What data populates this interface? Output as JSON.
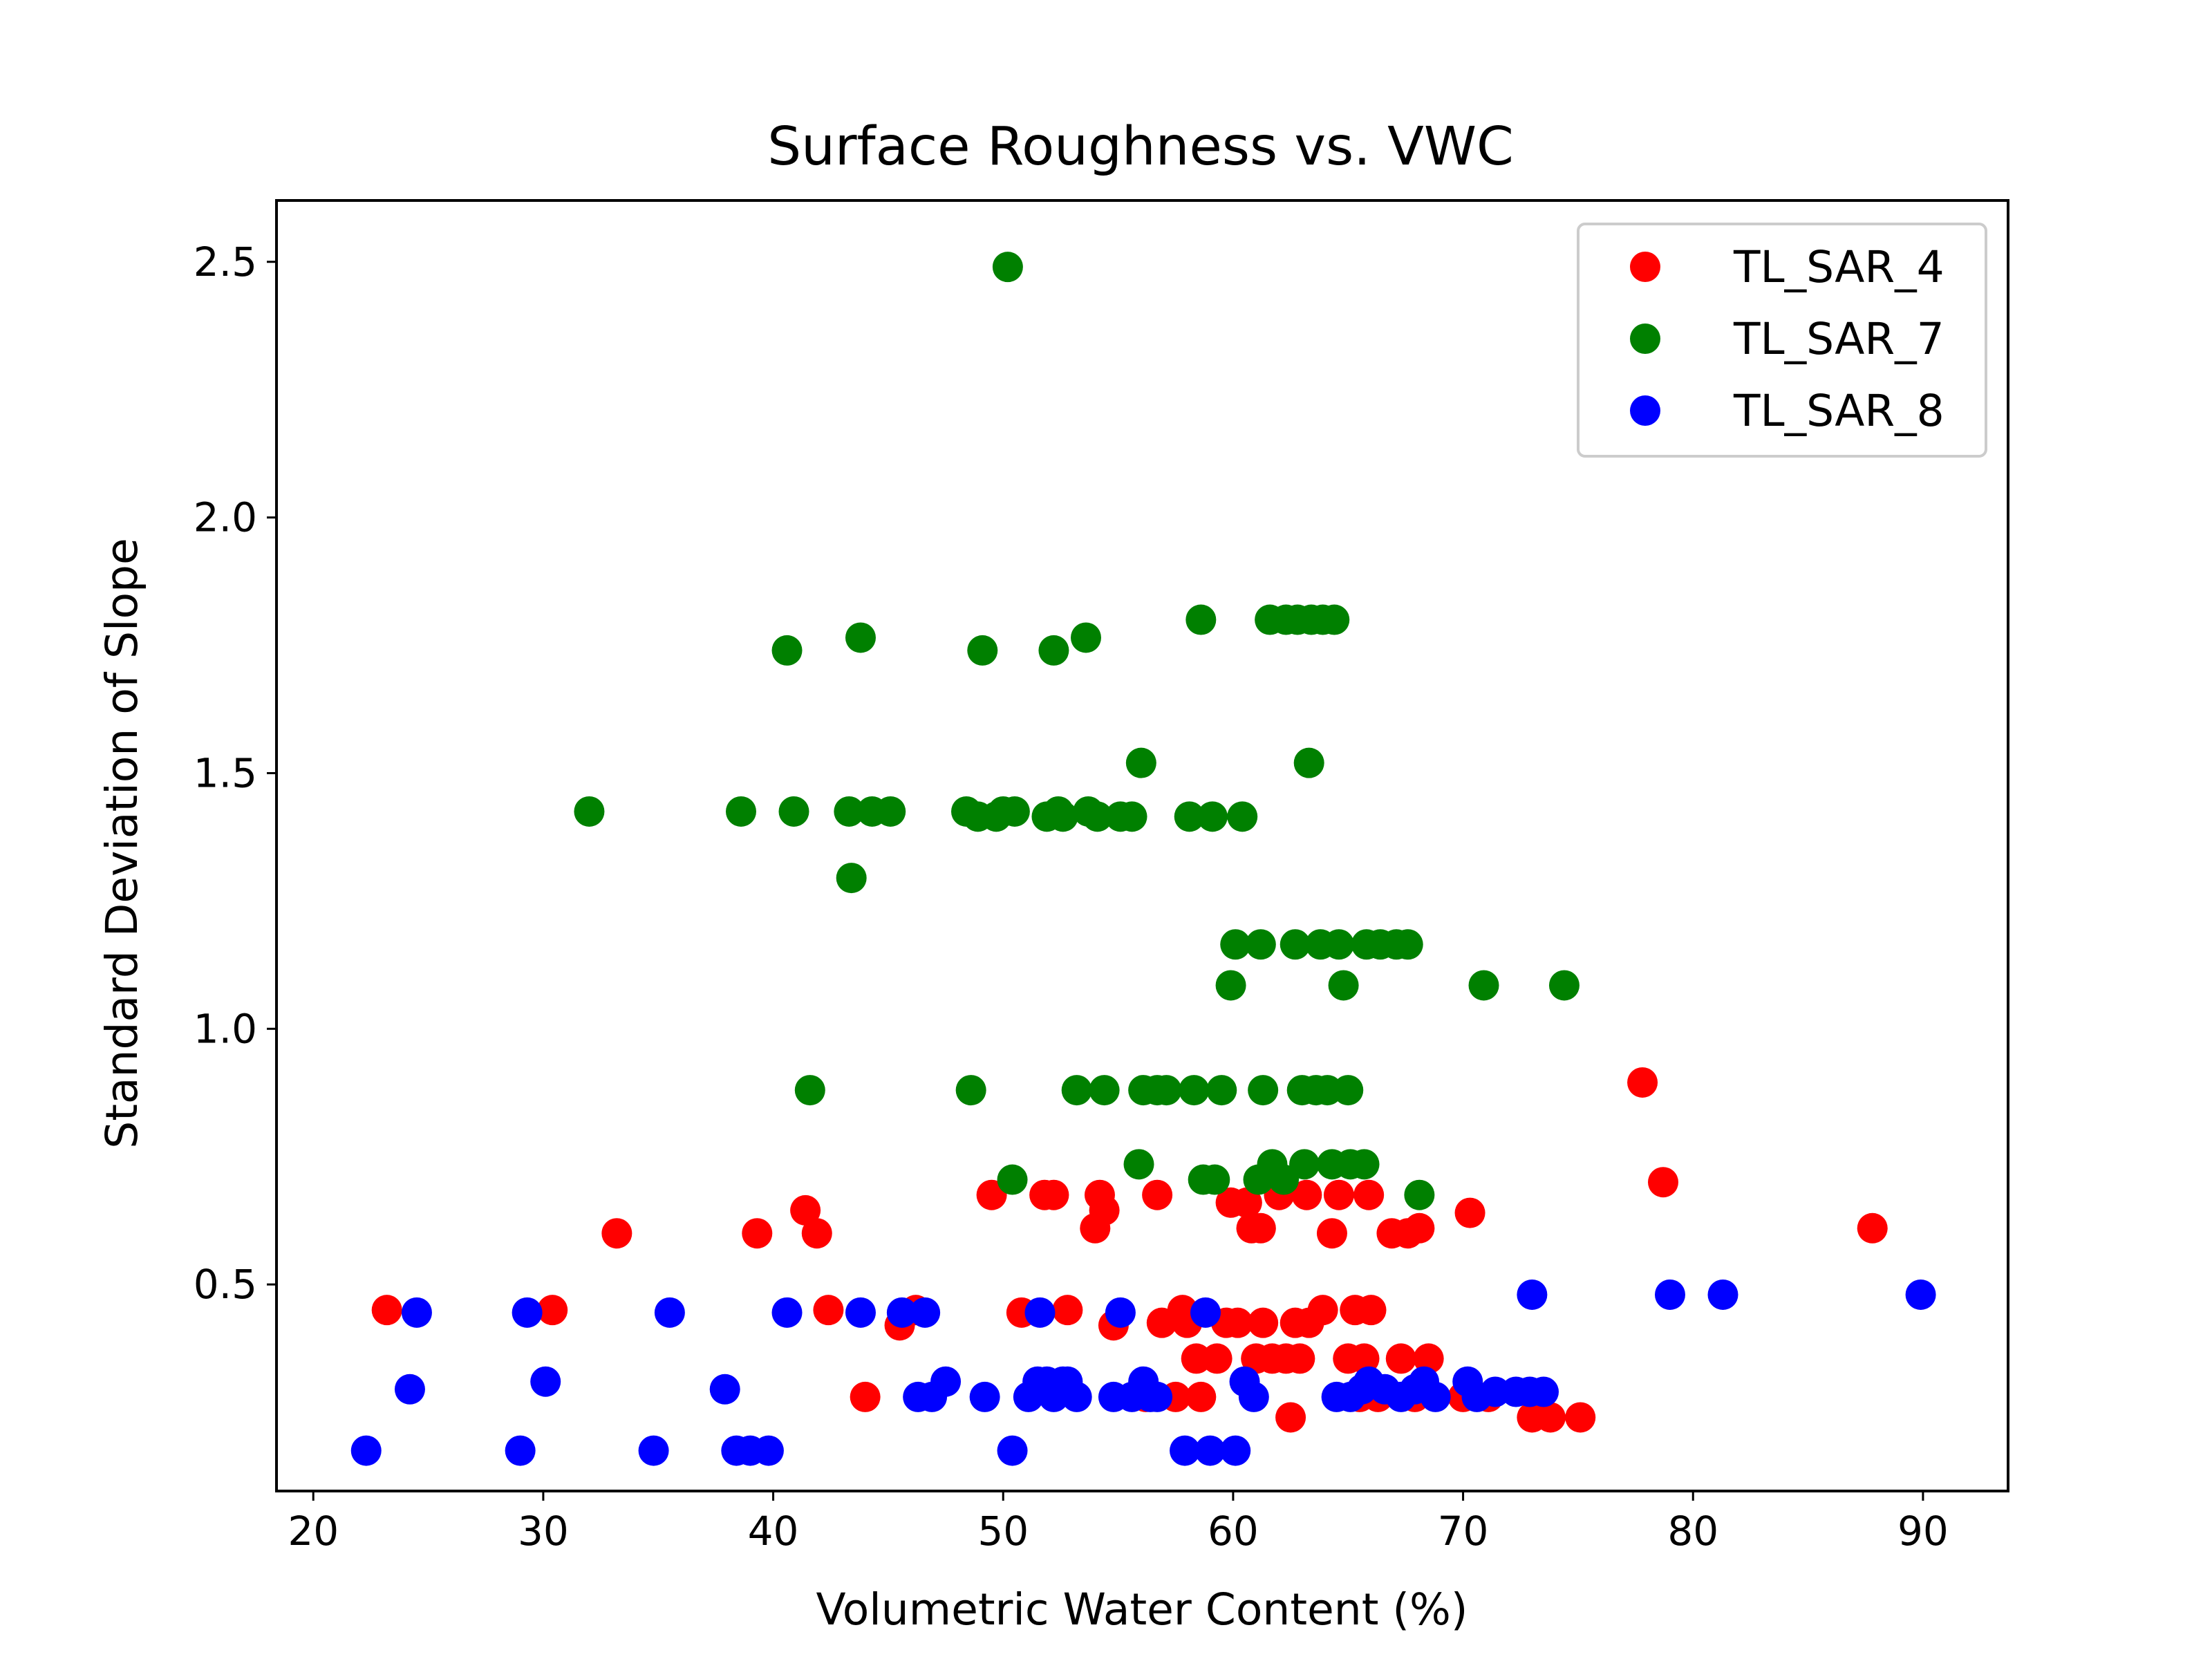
{
  "chart_data": {
    "type": "scatter",
    "title": "Surface Roughness vs. VWC",
    "xlabel": "Volumetric Water Content (%)",
    "ylabel": "Standard Deviation of Slope",
    "xlim": [
      18.4,
      93.7
    ],
    "ylim": [
      0.096,
      2.62
    ],
    "xticks": [
      "20",
      "30",
      "40",
      "50",
      "60",
      "70",
      "80",
      "90"
    ],
    "yticks": [
      "0.5",
      "1.0",
      "1.5",
      "2.0",
      "2.5"
    ],
    "grid": false,
    "legend_position": "top-right",
    "series": [
      {
        "name": "TL_SAR_4",
        "color": "#ff0000",
        "points": [
          [
            23.2,
            0.45
          ],
          [
            30.4,
            0.45
          ],
          [
            33.2,
            0.6
          ],
          [
            39.3,
            0.6
          ],
          [
            41.4,
            0.645
          ],
          [
            41.9,
            0.6
          ],
          [
            42.4,
            0.45
          ],
          [
            44.0,
            0.28
          ],
          [
            45.5,
            0.42
          ],
          [
            46.2,
            0.45
          ],
          [
            49.5,
            0.675
          ],
          [
            50.8,
            0.445
          ],
          [
            51.8,
            0.675
          ],
          [
            52.2,
            0.675
          ],
          [
            52.8,
            0.45
          ],
          [
            54.0,
            0.61
          ],
          [
            54.2,
            0.675
          ],
          [
            54.4,
            0.645
          ],
          [
            54.8,
            0.42
          ],
          [
            56.2,
            0.28
          ],
          [
            56.7,
            0.675
          ],
          [
            56.9,
            0.425
          ],
          [
            57.5,
            0.28
          ],
          [
            57.8,
            0.45
          ],
          [
            58.0,
            0.425
          ],
          [
            58.4,
            0.355
          ],
          [
            58.6,
            0.28
          ],
          [
            59.3,
            0.355
          ],
          [
            59.7,
            0.425
          ],
          [
            59.9,
            0.66
          ],
          [
            60.2,
            0.425
          ],
          [
            60.6,
            0.66
          ],
          [
            60.8,
            0.61
          ],
          [
            61.0,
            0.355
          ],
          [
            61.2,
            0.61
          ],
          [
            61.3,
            0.425
          ],
          [
            61.7,
            0.355
          ],
          [
            62.0,
            0.675
          ],
          [
            62.3,
            0.355
          ],
          [
            62.5,
            0.24
          ],
          [
            62.7,
            0.425
          ],
          [
            62.9,
            0.355
          ],
          [
            63.2,
            0.675
          ],
          [
            63.3,
            0.425
          ],
          [
            63.9,
            0.45
          ],
          [
            64.3,
            0.6
          ],
          [
            64.6,
            0.675
          ],
          [
            65.0,
            0.355
          ],
          [
            65.3,
            0.45
          ],
          [
            65.5,
            0.28
          ],
          [
            65.7,
            0.355
          ],
          [
            65.9,
            0.675
          ],
          [
            66.0,
            0.45
          ],
          [
            66.3,
            0.28
          ],
          [
            66.9,
            0.6
          ],
          [
            67.3,
            0.355
          ],
          [
            67.6,
            0.6
          ],
          [
            67.9,
            0.28
          ],
          [
            68.1,
            0.61
          ],
          [
            68.5,
            0.355
          ],
          [
            70.0,
            0.28
          ],
          [
            70.3,
            0.64
          ],
          [
            71.1,
            0.28
          ],
          [
            73.0,
            0.24
          ],
          [
            73.8,
            0.24
          ],
          [
            75.1,
            0.24
          ],
          [
            77.8,
            0.895
          ],
          [
            78.7,
            0.7
          ],
          [
            87.8,
            0.61
          ]
        ]
      },
      {
        "name": "TL_SAR_7",
        "color": "#008000",
        "points": [
          [
            50.2,
            2.49
          ],
          [
            32.0,
            1.425
          ],
          [
            38.6,
            1.425
          ],
          [
            40.6,
            1.74
          ],
          [
            40.9,
            1.425
          ],
          [
            41.6,
            0.88
          ],
          [
            43.3,
            1.425
          ],
          [
            43.4,
            1.295
          ],
          [
            43.8,
            1.765
          ],
          [
            44.3,
            1.425
          ],
          [
            45.1,
            1.425
          ],
          [
            48.6,
            0.88
          ],
          [
            48.4,
            1.425
          ],
          [
            48.9,
            1.415
          ],
          [
            49.1,
            1.74
          ],
          [
            49.7,
            1.415
          ],
          [
            50.0,
            1.425
          ],
          [
            50.4,
            0.705
          ],
          [
            50.5,
            1.425
          ],
          [
            51.9,
            1.415
          ],
          [
            52.2,
            1.74
          ],
          [
            52.4,
            1.425
          ],
          [
            52.6,
            1.415
          ],
          [
            53.2,
            0.88
          ],
          [
            53.6,
            1.765
          ],
          [
            53.7,
            1.425
          ],
          [
            54.1,
            1.415
          ],
          [
            54.4,
            0.88
          ],
          [
            55.1,
            1.415
          ],
          [
            55.6,
            1.415
          ],
          [
            55.9,
            0.735
          ],
          [
            56.0,
            1.52
          ],
          [
            56.1,
            0.88
          ],
          [
            56.7,
            0.88
          ],
          [
            57.1,
            0.88
          ],
          [
            58.1,
            1.415
          ],
          [
            58.3,
            0.88
          ],
          [
            58.6,
            1.8
          ],
          [
            58.7,
            0.705
          ],
          [
            59.1,
            1.415
          ],
          [
            59.2,
            0.705
          ],
          [
            59.5,
            0.88
          ],
          [
            59.9,
            1.085
          ],
          [
            60.1,
            1.165
          ],
          [
            60.4,
            1.415
          ],
          [
            61.1,
            0.705
          ],
          [
            61.2,
            1.165
          ],
          [
            61.3,
            0.88
          ],
          [
            61.6,
            1.8
          ],
          [
            61.7,
            0.735
          ],
          [
            62.2,
            0.705
          ],
          [
            62.3,
            1.8
          ],
          [
            62.7,
            1.165
          ],
          [
            62.8,
            1.8
          ],
          [
            63.0,
            0.88
          ],
          [
            63.1,
            0.735
          ],
          [
            63.3,
            1.52
          ],
          [
            63.4,
            1.8
          ],
          [
            63.6,
            0.88
          ],
          [
            63.8,
            1.165
          ],
          [
            63.9,
            1.8
          ],
          [
            64.1,
            0.88
          ],
          [
            64.3,
            0.735
          ],
          [
            64.4,
            1.8
          ],
          [
            64.6,
            1.165
          ],
          [
            64.8,
            1.085
          ],
          [
            65.0,
            0.88
          ],
          [
            65.1,
            0.735
          ],
          [
            65.7,
            0.735
          ],
          [
            65.8,
            1.165
          ],
          [
            66.4,
            1.165
          ],
          [
            67.1,
            1.165
          ],
          [
            67.6,
            1.165
          ],
          [
            68.1,
            0.675
          ],
          [
            70.9,
            1.085
          ],
          [
            74.4,
            1.085
          ]
        ]
      },
      {
        "name": "TL_SAR_8",
        "color": "#0000ff",
        "points": [
          [
            22.3,
            0.175
          ],
          [
            24.2,
            0.295
          ],
          [
            24.5,
            0.445
          ],
          [
            29.0,
            0.175
          ],
          [
            29.3,
            0.445
          ],
          [
            30.1,
            0.31
          ],
          [
            34.8,
            0.175
          ],
          [
            35.5,
            0.445
          ],
          [
            37.9,
            0.295
          ],
          [
            38.4,
            0.175
          ],
          [
            39.0,
            0.175
          ],
          [
            39.8,
            0.175
          ],
          [
            40.6,
            0.445
          ],
          [
            43.8,
            0.445
          ],
          [
            45.6,
            0.445
          ],
          [
            46.3,
            0.28
          ],
          [
            46.6,
            0.445
          ],
          [
            46.9,
            0.28
          ],
          [
            47.5,
            0.31
          ],
          [
            49.2,
            0.28
          ],
          [
            50.4,
            0.175
          ],
          [
            51.1,
            0.28
          ],
          [
            51.5,
            0.31
          ],
          [
            51.6,
            0.445
          ],
          [
            51.9,
            0.31
          ],
          [
            52.2,
            0.28
          ],
          [
            52.6,
            0.31
          ],
          [
            52.8,
            0.31
          ],
          [
            53.2,
            0.28
          ],
          [
            54.8,
            0.28
          ],
          [
            55.1,
            0.445
          ],
          [
            55.6,
            0.28
          ],
          [
            56.1,
            0.31
          ],
          [
            56.4,
            0.28
          ],
          [
            56.7,
            0.28
          ],
          [
            57.9,
            0.175
          ],
          [
            58.8,
            0.445
          ],
          [
            59.0,
            0.175
          ],
          [
            60.1,
            0.175
          ],
          [
            60.5,
            0.31
          ],
          [
            60.9,
            0.28
          ],
          [
            64.5,
            0.28
          ],
          [
            65.1,
            0.28
          ],
          [
            65.6,
            0.295
          ],
          [
            65.9,
            0.31
          ],
          [
            66.6,
            0.295
          ],
          [
            67.3,
            0.28
          ],
          [
            67.9,
            0.295
          ],
          [
            68.3,
            0.31
          ],
          [
            68.8,
            0.28
          ],
          [
            70.2,
            0.31
          ],
          [
            70.6,
            0.28
          ],
          [
            71.4,
            0.29
          ],
          [
            72.3,
            0.29
          ],
          [
            72.9,
            0.29
          ],
          [
            73.0,
            0.48
          ],
          [
            73.5,
            0.29
          ],
          [
            79.0,
            0.48
          ],
          [
            81.3,
            0.48
          ],
          [
            89.9,
            0.48
          ]
        ]
      }
    ]
  }
}
